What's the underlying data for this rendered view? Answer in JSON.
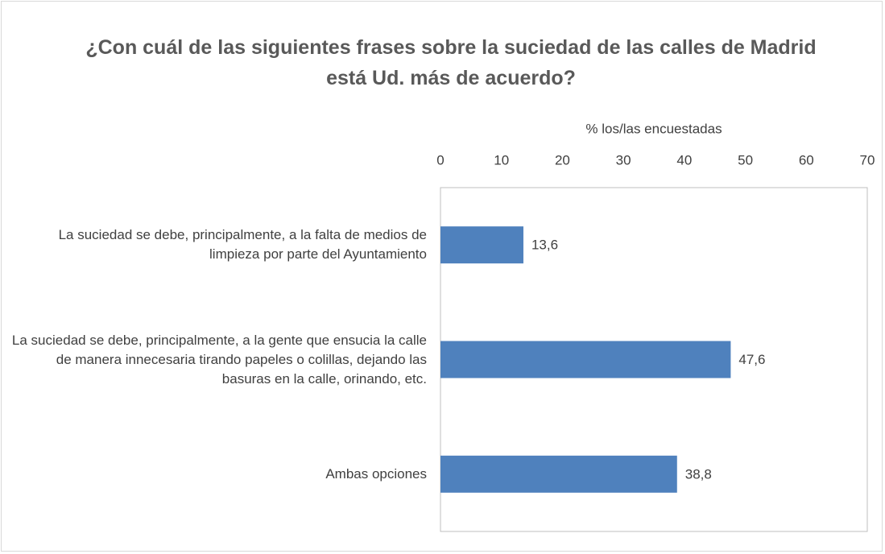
{
  "chart_data": {
    "type": "bar",
    "orientation": "horizontal",
    "title": "¿Con cuál de las siguientes frases sobre la suciedad de las calles de Madrid está Ud. más de acuerdo?",
    "x_label": "% los/las encuestadas",
    "categories": [
      "La suciedad se debe, principalmente, a la falta de medios de limpieza por parte del Ayuntamiento",
      "La suciedad se debe, principalmente, a la gente que ensucia la calle de manera innecesaria tirando papeles o colillas, dejando las basuras en la calle, orinando, etc.",
      "Ambas opciones"
    ],
    "values": [
      13.6,
      47.6,
      38.8
    ],
    "value_labels": [
      "13,6",
      "47,6",
      "38,8"
    ],
    "color": "#4f81bd",
    "xlim": [
      0,
      70
    ],
    "xticks": [
      0,
      10,
      20,
      30,
      40,
      50,
      60,
      70
    ],
    "grid": false
  }
}
